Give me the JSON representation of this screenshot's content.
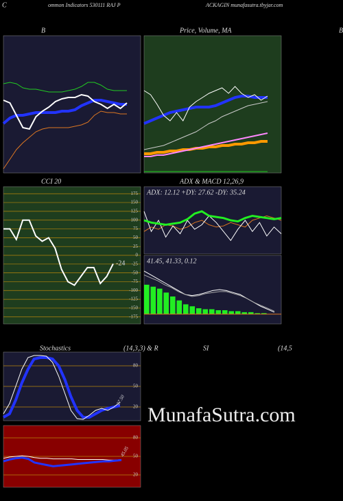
{
  "header": {
    "left": "C",
    "middle": "ommon  Indicators 530111 RAJ P",
    "right": "ACKAGIN  munafasutra.tbyjar.com",
    "next_panel": "B"
  },
  "watermark": "MunafaSutra.com",
  "stoch_row": {
    "title": "Stochastics",
    "params": "(14,3,3) & R",
    "rsi": "SI",
    "rsi_params": "(14,5"
  },
  "chart_data": [
    {
      "type": "line",
      "title": "B",
      "background": "#1a1a33",
      "ylim": [
        0,
        100
      ],
      "series": [
        {
          "color": "#22cc22",
          "width": 1,
          "values": [
            65,
            66,
            65,
            62,
            61,
            61,
            60,
            59,
            59,
            59,
            60,
            61,
            63,
            66,
            66,
            64,
            61,
            60,
            60,
            60
          ]
        },
        {
          "color": "#dd7722",
          "width": 1,
          "values": [
            3,
            10,
            17,
            22,
            26,
            30,
            32,
            33,
            33,
            33,
            33,
            34,
            35,
            37,
            42,
            45,
            44,
            44,
            43,
            43
          ]
        },
        {
          "color": "#2233ff",
          "width": 4,
          "values": [
            36,
            40,
            42,
            42,
            43,
            44,
            44,
            44,
            44,
            45,
            45,
            46,
            49,
            51,
            53,
            53,
            52,
            51,
            50,
            50
          ]
        },
        {
          "color": "#ffffff",
          "width": 2,
          "values": [
            53,
            51,
            42,
            33,
            32,
            41,
            45,
            48,
            52,
            54,
            55,
            55,
            57,
            56,
            52,
            50,
            47,
            50,
            47,
            51
          ]
        }
      ]
    },
    {
      "type": "line",
      "title": "Price, Volume, MA",
      "background": "#1e3d1e",
      "ylim": [
        0,
        100
      ],
      "series": [
        {
          "color": "#22cc22",
          "width": 1,
          "values": [
            1,
            1,
            1,
            1,
            1,
            1,
            1,
            1,
            1,
            1,
            1,
            1,
            1,
            1,
            1,
            1,
            1,
            1,
            1,
            1
          ]
        },
        {
          "color": "#ff9900",
          "width": 4,
          "values": [
            14,
            14,
            15,
            15,
            16,
            16,
            17,
            17,
            18,
            18,
            19,
            19,
            20,
            20,
            21,
            21,
            22,
            22,
            23,
            23
          ]
        },
        {
          "color": "#ff88ff",
          "width": 2,
          "values": [
            12,
            12,
            13,
            13,
            14,
            15,
            16,
            17,
            18,
            19,
            20,
            21,
            22,
            23,
            24,
            25,
            26,
            27,
            28,
            29
          ]
        },
        {
          "color": "#cccccc",
          "width": 1,
          "values": [
            17,
            18,
            19,
            20,
            22,
            24,
            26,
            28,
            30,
            33,
            36,
            38,
            41,
            43,
            45,
            47,
            49,
            50,
            51,
            52
          ]
        },
        {
          "color": "#2233ff",
          "width": 4,
          "values": [
            36,
            38,
            40,
            42,
            44,
            45,
            46,
            47,
            48,
            48,
            48,
            49,
            51,
            53,
            55,
            56,
            56,
            55,
            55,
            55
          ]
        },
        {
          "color": "#ffffff",
          "width": 1,
          "values": [
            60,
            57,
            50,
            42,
            38,
            44,
            38,
            48,
            52,
            55,
            58,
            60,
            62,
            58,
            63,
            58,
            55,
            57,
            53,
            56
          ]
        }
      ]
    },
    {
      "type": "line",
      "title": "CCI 20",
      "background": "#1e3d1e",
      "grid_color": "#b8860b",
      "ylim": [
        -195,
        195
      ],
      "yticks": [
        175,
        150,
        125,
        100,
        75,
        50,
        25,
        0,
        -25,
        -50,
        -75,
        -100,
        -125,
        -150,
        -175
      ],
      "series": [
        {
          "color": "#ffffff",
          "width": 2,
          "values": [
            75,
            75,
            45,
            100,
            100,
            55,
            40,
            50,
            20,
            -40,
            -75,
            -85,
            -60,
            -35,
            -35,
            -80,
            -60,
            -24
          ]
        }
      ]
    },
    {
      "type": "line",
      "title": "ADX  & MACD 12,26,9",
      "background": "#1a1a33",
      "ylim": [
        0,
        60
      ],
      "annotation": "ADX: 12.12  +DY: 27.62  -DY: 35.24",
      "series": [
        {
          "color": "#dd7722",
          "width": 1,
          "values": [
            20,
            24,
            22,
            26,
            25,
            22,
            24,
            28,
            30,
            26,
            24,
            25,
            28,
            26,
            24,
            30,
            32,
            34,
            32,
            30
          ]
        },
        {
          "color": "#ffffff",
          "width": 1,
          "values": [
            38,
            20,
            30,
            15,
            25,
            18,
            30,
            22,
            26,
            34,
            28,
            20,
            12,
            22,
            30,
            20,
            28,
            16,
            24,
            18
          ]
        },
        {
          "color": "#22ee22",
          "width": 3,
          "values": [
            30,
            28,
            27,
            26,
            27,
            28,
            31,
            36,
            38,
            34,
            33,
            32,
            30,
            29,
            32,
            34,
            33,
            32,
            31,
            32
          ]
        }
      ]
    },
    {
      "type": "macd",
      "background": "#1a1a33",
      "ylim": [
        -10,
        60
      ],
      "annotation": "41.45,  41.33,  0.12",
      "histogram": {
        "color": "#22ee22",
        "values": [
          30,
          28,
          26,
          22,
          18,
          14,
          10,
          8,
          6,
          5,
          5,
          4,
          4,
          3,
          3,
          2,
          2,
          1,
          1,
          0
        ]
      },
      "series": [
        {
          "color": "#ffffff",
          "width": 1,
          "values": [
            44,
            40,
            36,
            32,
            28,
            24,
            20,
            19,
            20,
            22,
            24,
            25,
            24,
            22,
            20,
            16,
            12,
            8,
            5,
            2
          ]
        },
        {
          "color": "#aaaaaa",
          "width": 1,
          "values": [
            40,
            37,
            34,
            30,
            27,
            23,
            20,
            18,
            19,
            21,
            22,
            23,
            23,
            21,
            19,
            16,
            12,
            9,
            6,
            3
          ]
        }
      ]
    },
    {
      "type": "line",
      "background": "#1a1a33",
      "grid_color": "#b8860b",
      "ylim": [
        0,
        100
      ],
      "yticks": [
        80,
        50,
        20
      ],
      "annotation": "27.50",
      "series": [
        {
          "color": "#2233ff",
          "width": 4,
          "values": [
            5,
            10,
            30,
            55,
            75,
            90,
            92,
            92,
            90,
            80,
            60,
            35,
            15,
            5,
            5,
            10,
            15,
            18,
            20,
            22
          ]
        },
        {
          "color": "#ffffff",
          "width": 1,
          "values": [
            10,
            25,
            50,
            75,
            92,
            95,
            95,
            94,
            85,
            65,
            40,
            15,
            3,
            2,
            8,
            15,
            18,
            15,
            20,
            27
          ]
        }
      ]
    },
    {
      "type": "line",
      "background": "#880000",
      "grid_color": "#b8860b",
      "ylim": [
        0,
        100
      ],
      "yticks": [
        80,
        50,
        20
      ],
      "annotation": "45.05",
      "series": [
        {
          "color": "#ffffff",
          "width": 1,
          "values": [
            47,
            49,
            50,
            51,
            50,
            48,
            47,
            47,
            46,
            46,
            46,
            46,
            45,
            45,
            45,
            45,
            45,
            44,
            44,
            45
          ]
        },
        {
          "color": "#2233ff",
          "width": 3,
          "values": [
            42,
            45,
            47,
            48,
            46,
            40,
            38,
            36,
            34,
            35,
            36,
            37,
            38,
            39,
            40,
            41,
            42,
            42,
            43,
            44
          ]
        }
      ]
    }
  ]
}
